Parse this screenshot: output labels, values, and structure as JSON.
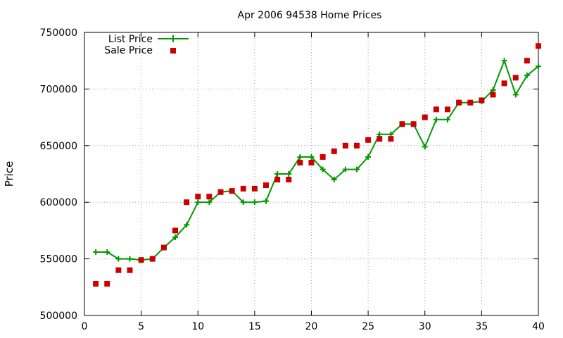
{
  "chart_data": {
    "type": "line",
    "title": "Apr 2006 94538 Home Prices",
    "xlabel": "",
    "ylabel": "Price",
    "xlim": [
      0,
      40
    ],
    "ylim": [
      500000,
      750000
    ],
    "x_ticks": [
      0,
      5,
      10,
      15,
      20,
      25,
      30,
      35,
      40
    ],
    "y_ticks": [
      500000,
      550000,
      600000,
      650000,
      700000,
      750000
    ],
    "grid": true,
    "legend_position": "top-left",
    "x": [
      1,
      2,
      3,
      4,
      5,
      6,
      7,
      8,
      9,
      10,
      11,
      12,
      13,
      14,
      15,
      16,
      17,
      18,
      19,
      20,
      21,
      22,
      23,
      24,
      25,
      26,
      27,
      28,
      29,
      30,
      31,
      32,
      33,
      34,
      35,
      36,
      37,
      38,
      39,
      40
    ],
    "series": [
      {
        "name": "List Price",
        "style": "line-with-plus-markers",
        "color": "#009900",
        "values": [
          556000,
          556000,
          550000,
          550000,
          549000,
          550000,
          560000,
          569000,
          580000,
          600000,
          600000,
          609000,
          610000,
          600000,
          600000,
          601000,
          625000,
          625000,
          640000,
          640000,
          629000,
          620000,
          629000,
          629000,
          640000,
          660000,
          660000,
          669000,
          669000,
          649000,
          673000,
          673000,
          688000,
          688000,
          689000,
          699000,
          725000,
          695000,
          712000,
          720000
        ]
      },
      {
        "name": "Sale Price",
        "style": "square-markers",
        "color": "#cc0000",
        "values": [
          528000,
          528000,
          540000,
          540000,
          549000,
          550000,
          560000,
          575000,
          600000,
          605000,
          605000,
          609000,
          610000,
          612000,
          612000,
          615000,
          620000,
          620000,
          635000,
          635000,
          640000,
          645000,
          650000,
          650000,
          655000,
          656000,
          656000,
          669000,
          669000,
          675000,
          682000,
          682000,
          688000,
          688000,
          690000,
          695000,
          705000,
          710000,
          725000,
          738000
        ]
      }
    ]
  }
}
